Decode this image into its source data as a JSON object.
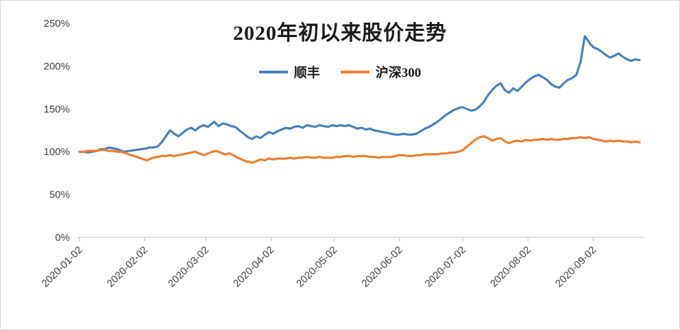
{
  "chart_data": {
    "type": "line",
    "title": "2020年初以来股价走势",
    "xlabel": "",
    "ylabel": "",
    "legend_position": "top",
    "grid": false,
    "axis_color": "#bfbfbf",
    "ylim": [
      0,
      250
    ],
    "xlim": [
      0,
      266
    ],
    "x_unit": "days since 2020-01-02",
    "y_ticks": [
      "0%",
      "50%",
      "100%",
      "150%",
      "200%",
      "250%"
    ],
    "y_tick_values": [
      0,
      50,
      100,
      150,
      200,
      250
    ],
    "x_ticks": [
      "2020-01-02",
      "2020-02-02",
      "2020-03-02",
      "2020-04-02",
      "2020-05-02",
      "2020-06-02",
      "2020-07-02",
      "2020-08-02",
      "2020-09-02"
    ],
    "x_tick_days": [
      0,
      31,
      60,
      91,
      121,
      152,
      182,
      213,
      244
    ],
    "series": [
      {
        "name": "顺丰",
        "color": "#4a7ebb",
        "points": [
          [
            0,
            100
          ],
          [
            2,
            100
          ],
          [
            4,
            99
          ],
          [
            6,
            100
          ],
          [
            8,
            101
          ],
          [
            10,
            103
          ],
          [
            12,
            103
          ],
          [
            14,
            105
          ],
          [
            16,
            104
          ],
          [
            18,
            103
          ],
          [
            20,
            101
          ],
          [
            21,
            100
          ],
          [
            32,
            104
          ],
          [
            33,
            105
          ],
          [
            35,
            105
          ],
          [
            37,
            106
          ],
          [
            39,
            111
          ],
          [
            41,
            118
          ],
          [
            43,
            125
          ],
          [
            45,
            121
          ],
          [
            47,
            118
          ],
          [
            49,
            122
          ],
          [
            51,
            126
          ],
          [
            53,
            128
          ],
          [
            55,
            125
          ],
          [
            57,
            129
          ],
          [
            59,
            131
          ],
          [
            61,
            129
          ],
          [
            63,
            133
          ],
          [
            64,
            135
          ],
          [
            66,
            130
          ],
          [
            68,
            133
          ],
          [
            70,
            132
          ],
          [
            72,
            130
          ],
          [
            74,
            129
          ],
          [
            76,
            125
          ],
          [
            78,
            121
          ],
          [
            80,
            117
          ],
          [
            82,
            115
          ],
          [
            84,
            118
          ],
          [
            86,
            116
          ],
          [
            88,
            120
          ],
          [
            90,
            123
          ],
          [
            92,
            121
          ],
          [
            94,
            124
          ],
          [
            96,
            126
          ],
          [
            98,
            128
          ],
          [
            100,
            127
          ],
          [
            102,
            129
          ],
          [
            104,
            130
          ],
          [
            106,
            128
          ],
          [
            108,
            131
          ],
          [
            110,
            130
          ],
          [
            112,
            129
          ],
          [
            114,
            131
          ],
          [
            116,
            130
          ],
          [
            118,
            129
          ],
          [
            120,
            131
          ],
          [
            122,
            130
          ],
          [
            124,
            131
          ],
          [
            126,
            130
          ],
          [
            128,
            131
          ],
          [
            130,
            129
          ],
          [
            132,
            127
          ],
          [
            134,
            128
          ],
          [
            136,
            126
          ],
          [
            138,
            127
          ],
          [
            140,
            125
          ],
          [
            142,
            124
          ],
          [
            144,
            123
          ],
          [
            146,
            122
          ],
          [
            148,
            121
          ],
          [
            150,
            120
          ],
          [
            152,
            120
          ],
          [
            154,
            121
          ],
          [
            156,
            120
          ],
          [
            158,
            120
          ],
          [
            160,
            121
          ],
          [
            162,
            124
          ],
          [
            164,
            127
          ],
          [
            166,
            129
          ],
          [
            168,
            132
          ],
          [
            170,
            135
          ],
          [
            172,
            139
          ],
          [
            174,
            143
          ],
          [
            176,
            146
          ],
          [
            178,
            149
          ],
          [
            180,
            151
          ],
          [
            182,
            152
          ],
          [
            184,
            150
          ],
          [
            186,
            148
          ],
          [
            188,
            149
          ],
          [
            190,
            153
          ],
          [
            192,
            158
          ],
          [
            194,
            166
          ],
          [
            196,
            172
          ],
          [
            198,
            177
          ],
          [
            200,
            180
          ],
          [
            202,
            172
          ],
          [
            204,
            169
          ],
          [
            206,
            174
          ],
          [
            208,
            171
          ],
          [
            210,
            176
          ],
          [
            212,
            181
          ],
          [
            214,
            185
          ],
          [
            216,
            188
          ],
          [
            218,
            190
          ],
          [
            220,
            187
          ],
          [
            222,
            184
          ],
          [
            224,
            179
          ],
          [
            226,
            176
          ],
          [
            228,
            175
          ],
          [
            230,
            180
          ],
          [
            232,
            184
          ],
          [
            234,
            186
          ],
          [
            236,
            190
          ],
          [
            238,
            205
          ],
          [
            240,
            235
          ],
          [
            242,
            228
          ],
          [
            244,
            222
          ],
          [
            246,
            220
          ],
          [
            248,
            217
          ],
          [
            250,
            213
          ],
          [
            252,
            210
          ],
          [
            254,
            212
          ],
          [
            256,
            215
          ],
          [
            258,
            211
          ],
          [
            260,
            208
          ],
          [
            262,
            206
          ],
          [
            264,
            208
          ],
          [
            266,
            207
          ]
        ]
      },
      {
        "name": "沪深300",
        "color": "#ed7d31",
        "points": [
          [
            0,
            100
          ],
          [
            2,
            100
          ],
          [
            4,
            101
          ],
          [
            6,
            101
          ],
          [
            8,
            101
          ],
          [
            10,
            102
          ],
          [
            12,
            102
          ],
          [
            14,
            101
          ],
          [
            16,
            101
          ],
          [
            18,
            100
          ],
          [
            20,
            100
          ],
          [
            21,
            99
          ],
          [
            32,
            90
          ],
          [
            33,
            91
          ],
          [
            35,
            93
          ],
          [
            37,
            94
          ],
          [
            39,
            95
          ],
          [
            41,
            95
          ],
          [
            43,
            96
          ],
          [
            45,
            95
          ],
          [
            47,
            96
          ],
          [
            49,
            97
          ],
          [
            51,
            98
          ],
          [
            53,
            99
          ],
          [
            55,
            100
          ],
          [
            57,
            98
          ],
          [
            59,
            96
          ],
          [
            61,
            98
          ],
          [
            63,
            100
          ],
          [
            65,
            101
          ],
          [
            67,
            99
          ],
          [
            69,
            97
          ],
          [
            71,
            98
          ],
          [
            73,
            96
          ],
          [
            75,
            93
          ],
          [
            77,
            91
          ],
          [
            79,
            89
          ],
          [
            81,
            88
          ],
          [
            82,
            87
          ],
          [
            84,
            89
          ],
          [
            86,
            91
          ],
          [
            88,
            90
          ],
          [
            90,
            92
          ],
          [
            92,
            91
          ],
          [
            94,
            92
          ],
          [
            96,
            92
          ],
          [
            98,
            92
          ],
          [
            100,
            93
          ],
          [
            102,
            92
          ],
          [
            104,
            93
          ],
          [
            106,
            93
          ],
          [
            108,
            94
          ],
          [
            110,
            93
          ],
          [
            112,
            93
          ],
          [
            114,
            94
          ],
          [
            116,
            93
          ],
          [
            118,
            93
          ],
          [
            120,
            93
          ],
          [
            122,
            94
          ],
          [
            124,
            94
          ],
          [
            126,
            95
          ],
          [
            128,
            95
          ],
          [
            130,
            94
          ],
          [
            132,
            95
          ],
          [
            134,
            95
          ],
          [
            136,
            95
          ],
          [
            138,
            94
          ],
          [
            140,
            94
          ],
          [
            142,
            93
          ],
          [
            144,
            94
          ],
          [
            146,
            94
          ],
          [
            148,
            94
          ],
          [
            150,
            95
          ],
          [
            152,
            96
          ],
          [
            154,
            96
          ],
          [
            156,
            95
          ],
          [
            158,
            95
          ],
          [
            160,
            96
          ],
          [
            162,
            96
          ],
          [
            164,
            97
          ],
          [
            166,
            97
          ],
          [
            168,
            97
          ],
          [
            170,
            97
          ],
          [
            172,
            98
          ],
          [
            174,
            98
          ],
          [
            176,
            99
          ],
          [
            178,
            99
          ],
          [
            180,
            100
          ],
          [
            182,
            102
          ],
          [
            184,
            106
          ],
          [
            186,
            110
          ],
          [
            188,
            114
          ],
          [
            190,
            117
          ],
          [
            192,
            118
          ],
          [
            194,
            116
          ],
          [
            196,
            113
          ],
          [
            198,
            115
          ],
          [
            200,
            116
          ],
          [
            202,
            112
          ],
          [
            204,
            110
          ],
          [
            206,
            112
          ],
          [
            208,
            113
          ],
          [
            210,
            112
          ],
          [
            212,
            114
          ],
          [
            214,
            113
          ],
          [
            216,
            114
          ],
          [
            218,
            114
          ],
          [
            220,
            115
          ],
          [
            222,
            114
          ],
          [
            224,
            115
          ],
          [
            226,
            114
          ],
          [
            228,
            114
          ],
          [
            230,
            115
          ],
          [
            232,
            115
          ],
          [
            234,
            116
          ],
          [
            236,
            116
          ],
          [
            238,
            117
          ],
          [
            240,
            116
          ],
          [
            242,
            117
          ],
          [
            244,
            115
          ],
          [
            246,
            114
          ],
          [
            248,
            113
          ],
          [
            250,
            112
          ],
          [
            252,
            113
          ],
          [
            254,
            112
          ],
          [
            256,
            113
          ],
          [
            258,
            112
          ],
          [
            260,
            112
          ],
          [
            262,
            111
          ],
          [
            264,
            112
          ],
          [
            266,
            111
          ]
        ]
      }
    ]
  }
}
